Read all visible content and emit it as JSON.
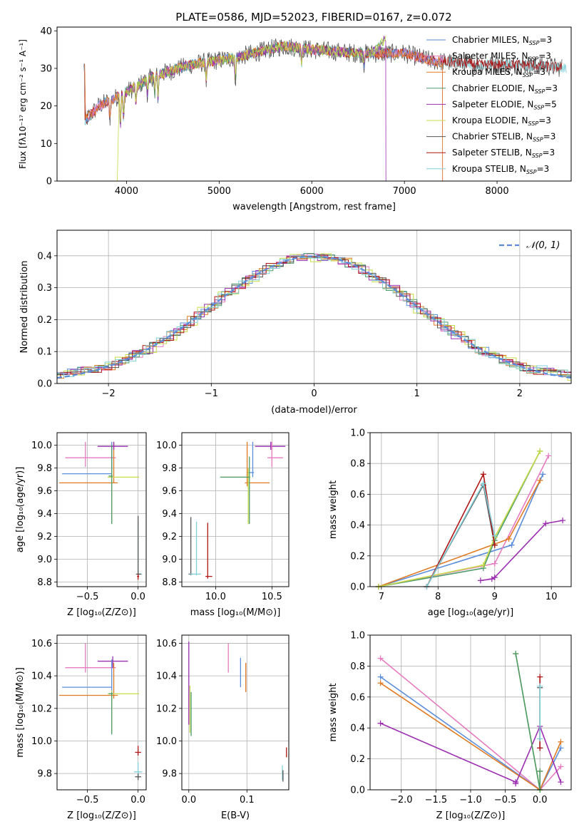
{
  "colors": {
    "chabrier_miles": "#5B8DDB",
    "salpeter_miles": "#E67BC0",
    "kroupa_miles": "#E07A22",
    "chabrier_elodie": "#4C9A6A",
    "salpeter_elodie": "#9A2FB0",
    "kroupa_elodie": "#C8DB48",
    "chabrier_stelib": "#555555",
    "salpeter_stelib": "#B01515",
    "kroupa_stelib": "#7FCFD8",
    "gauss": "#5B8DDB"
  },
  "chart_data": [
    {
      "type": "line",
      "title": "PLATE=0586, MJD=52023, FIBERID=0167, z=0.072",
      "xlabel": "wavelength [Angstrom, rest frame]",
      "ylabel": "Flux [fλ10⁻¹⁷ erg cm⁻² s⁻¹ A⁻¹]",
      "xlim": [
        3250,
        8800
      ],
      "ylim": [
        0,
        41
      ],
      "xticks": [
        "4000",
        "5000",
        "6000",
        "7000",
        "8000"
      ],
      "yticks": [
        "0",
        "10",
        "20",
        "30",
        "40"
      ],
      "continuum": [
        [
          3550,
          16
        ],
        [
          3700,
          20
        ],
        [
          3950,
          23
        ],
        [
          4300,
          28
        ],
        [
          4700,
          31
        ],
        [
          5200,
          33
        ],
        [
          5700,
          36
        ],
        [
          6000,
          35
        ],
        [
          6500,
          34
        ],
        [
          7000,
          34
        ],
        [
          7300,
          32
        ],
        [
          7800,
          31
        ],
        [
          8300,
          31
        ],
        [
          8800,
          30
        ]
      ],
      "legend": [
        {
          "name": "Chabrier MILES, N",
          "sub": "SSP",
          "tail": "=3",
          "color": "chabrier_miles"
        },
        {
          "name": "Salpeter MILES, N",
          "sub": "SSP",
          "tail": "=3",
          "color": "salpeter_miles"
        },
        {
          "name": "Kroupa MILES, N",
          "sub": "SSP",
          "tail": "=3",
          "color": "kroupa_miles"
        },
        {
          "name": "Chabrier ELODIE, N",
          "sub": "SSP",
          "tail": "=3",
          "color": "chabrier_elodie"
        },
        {
          "name": "Salpeter ELODIE, N",
          "sub": "SSP",
          "tail": "=5",
          "color": "salpeter_elodie"
        },
        {
          "name": "Kroupa ELODIE, N",
          "sub": "SSP",
          "tail": "=3",
          "color": "kroupa_elodie"
        },
        {
          "name": "Chabrier STELIB, N",
          "sub": "SSP",
          "tail": "=3",
          "color": "chabrier_stelib"
        },
        {
          "name": "Salpeter STELIB, N",
          "sub": "SSP",
          "tail": "=3",
          "color": "salpeter_stelib"
        },
        {
          "name": "Kroupa STELIB, N",
          "sub": "SSP",
          "tail": "=3",
          "color": "kroupa_stelib"
        }
      ]
    },
    {
      "type": "histogram",
      "xlabel": "(data-model)/error",
      "ylabel": "Normed distribution",
      "xlim": [
        -2.5,
        2.5
      ],
      "ylim": [
        0,
        0.48
      ],
      "xticks": [
        "−2",
        "−1",
        "0",
        "1",
        "2"
      ],
      "yticks": [
        "0.0",
        "0.1",
        "0.2",
        "0.3",
        "0.4"
      ],
      "legend_label": "𝒩(0, 1)",
      "bin_width": 0.1,
      "series": [
        {
          "color": "chabrier_miles",
          "jitter": 0.011
        },
        {
          "color": "salpeter_miles",
          "jitter": 0.012
        },
        {
          "color": "kroupa_miles",
          "jitter": 0.013
        },
        {
          "color": "chabrier_elodie",
          "jitter": 0.011
        },
        {
          "color": "salpeter_elodie",
          "jitter": 0.014
        },
        {
          "color": "kroupa_elodie",
          "jitter": 0.018
        },
        {
          "color": "chabrier_stelib",
          "jitter": 0.01
        },
        {
          "color": "salpeter_stelib",
          "jitter": 0.012
        },
        {
          "color": "kroupa_stelib",
          "jitter": 0.012
        }
      ]
    },
    {
      "type": "errorbar",
      "xlabel": "Z [log₁₀(Z/Z⊙)]",
      "ylabel": "age  [log₁₀(age/yr)]",
      "xlim": [
        -0.8,
        0.08
      ],
      "ylim": [
        8.76,
        10.11
      ],
      "xticks": [
        -0.5,
        0.0
      ],
      "xtick_labels": [
        "−0.5",
        "0.0"
      ],
      "yticks": [
        8.8,
        9.0,
        9.2,
        9.4,
        9.6,
        9.8,
        10.0
      ],
      "ytick_labels": [
        "8.8",
        "9.0",
        "9.2",
        "9.4",
        "9.6",
        "9.8",
        "10.0"
      ],
      "points": [
        {
          "c": "salpeter_miles",
          "x": -0.52,
          "xl": -0.72,
          "xh": -0.22,
          "y": 9.89,
          "yl": 9.81,
          "yh": 10.03
        },
        {
          "c": "chabrier_miles",
          "x": -0.26,
          "xl": -0.75,
          "xh": -0.26,
          "y": 9.75,
          "yl": 9.72,
          "yh": 10.03
        },
        {
          "c": "kroupa_miles",
          "x": -0.24,
          "xl": -0.78,
          "xh": -0.2,
          "y": 9.67,
          "yl": 9.67,
          "yh": 10.03
        },
        {
          "c": "salpeter_elodie",
          "x": -0.24,
          "xl": -0.4,
          "xh": -0.1,
          "y": 9.99,
          "yl": 9.96,
          "yh": 10.03
        },
        {
          "c": "kroupa_elodie",
          "x": -0.26,
          "xl": -0.3,
          "xh": 0.01,
          "y": 9.72,
          "yl": 9.31,
          "yh": 9.78
        },
        {
          "c": "chabrier_elodie",
          "x": -0.26,
          "xl": -0.29,
          "xh": -0.25,
          "y": 9.73,
          "yl": 9.31,
          "yh": 10.0
        },
        {
          "c": "kroupa_stelib",
          "x": 0.0,
          "xl": -0.01,
          "xh": 0.04,
          "y": 8.87,
          "yl": 8.85,
          "yh": 9.33
        },
        {
          "c": "chabrier_stelib",
          "x": 0.0,
          "xl": -0.02,
          "xh": 0.03,
          "y": 8.87,
          "yl": 8.85,
          "yh": 9.38
        },
        {
          "c": "salpeter_stelib",
          "x": 0.0,
          "xl": -0.01,
          "xh": 0.01,
          "y": 8.85,
          "yl": 8.82,
          "yh": 8.87
        }
      ]
    },
    {
      "type": "errorbar",
      "xlabel": "mass [log₁₀(M/M⊙)]",
      "ylabel": "",
      "xlim": [
        9.7,
        10.65
      ],
      "ylim": [
        8.76,
        10.11
      ],
      "xticks": [
        10.0,
        10.5
      ],
      "xtick_labels": [
        "10.0",
        "10.5"
      ],
      "yticks": [
        8.8,
        9.0,
        9.2,
        9.4,
        9.6,
        9.8,
        10.0
      ],
      "ytick_labels": [
        "8.8",
        "9.0",
        "9.2",
        "9.4",
        "9.6",
        "9.8",
        "10.0"
      ],
      "points": [
        {
          "c": "salpeter_elodie",
          "x": 10.49,
          "xl": 10.35,
          "xh": 10.62,
          "y": 9.99,
          "yl": 9.96,
          "yh": 10.03
        },
        {
          "c": "salpeter_miles",
          "x": 10.5,
          "xl": 10.46,
          "xh": 10.6,
          "y": 9.89,
          "yl": 9.81,
          "yh": 10.03
        },
        {
          "c": "chabrier_miles",
          "x": 10.33,
          "xl": 10.28,
          "xh": 10.34,
          "y": 9.76,
          "yl": 9.72,
          "yh": 10.03
        },
        {
          "c": "kroupa_miles",
          "x": 10.28,
          "xl": 10.26,
          "xh": 10.48,
          "y": 9.67,
          "yl": 9.64,
          "yh": 10.03
        },
        {
          "c": "kroupa_elodie",
          "x": 10.29,
          "xl": 10.05,
          "xh": 10.31,
          "y": 9.72,
          "yl": 9.31,
          "yh": 9.8
        },
        {
          "c": "chabrier_elodie",
          "x": 10.3,
          "xl": 10.04,
          "xh": 10.3,
          "y": 9.72,
          "yl": 9.31,
          "yh": 9.9
        },
        {
          "c": "chabrier_stelib",
          "x": 9.78,
          "xl": 9.76,
          "xh": 9.8,
          "y": 8.87,
          "yl": 8.86,
          "yh": 9.37
        },
        {
          "c": "kroupa_stelib",
          "x": 9.83,
          "xl": 9.77,
          "xh": 9.87,
          "y": 8.87,
          "yl": 8.86,
          "yh": 9.33
        },
        {
          "c": "salpeter_stelib",
          "x": 9.93,
          "xl": 9.91,
          "xh": 9.97,
          "y": 8.85,
          "yl": 8.83,
          "yh": 9.32
        }
      ]
    },
    {
      "type": "line",
      "xlabel": "age  [log₁₀(age/yr)]",
      "ylabel": "mass weight",
      "xlim": [
        6.8,
        10.35
      ],
      "ylim": [
        0,
        1.0
      ],
      "xticks": [
        7,
        8,
        9,
        10
      ],
      "xtick_labels": [
        "7",
        "8",
        "9",
        "10"
      ],
      "yticks": [
        0.0,
        0.2,
        0.4,
        0.6,
        0.8,
        1.0
      ],
      "ytick_labels": [
        "0.0",
        "0.2",
        "0.4",
        "0.6",
        "0.8",
        "1.0"
      ],
      "series": [
        {
          "c": "chabrier_miles",
          "pts": [
            [
              6.95,
              0.0
            ],
            [
              9.3,
              0.27
            ],
            [
              9.85,
              0.73
            ]
          ]
        },
        {
          "c": "salpeter_miles",
          "pts": [
            [
              6.95,
              0.0
            ],
            [
              9.0,
              0.15
            ],
            [
              9.95,
              0.85
            ]
          ]
        },
        {
          "c": "kroupa_miles",
          "pts": [
            [
              6.95,
              0.0
            ],
            [
              9.25,
              0.31
            ],
            [
              9.8,
              0.69
            ]
          ]
        },
        {
          "c": "chabrier_elodie",
          "pts": [
            [
              6.95,
              0.0
            ],
            [
              8.8,
              0.12
            ],
            [
              9.0,
              0.3
            ],
            [
              9.8,
              0.88
            ]
          ]
        },
        {
          "c": "salpeter_elodie",
          "pts": [
            [
              8.75,
              0.04
            ],
            [
              8.95,
              0.05
            ],
            [
              9.0,
              0.06
            ],
            [
              9.9,
              0.41
            ],
            [
              10.2,
              0.43
            ]
          ]
        },
        {
          "c": "kroupa_elodie",
          "pts": [
            [
              6.95,
              0.0
            ],
            [
              8.8,
              0.14
            ],
            [
              9.0,
              0.32
            ],
            [
              9.8,
              0.88
            ]
          ]
        },
        {
          "c": "chabrier_stelib",
          "pts": [
            [
              7.8,
              0.0
            ],
            [
              8.8,
              0.66
            ],
            [
              9.0,
              0.27
            ]
          ]
        },
        {
          "c": "salpeter_stelib",
          "pts": [
            [
              7.8,
              0.0
            ],
            [
              8.8,
              0.73
            ],
            [
              9.0,
              0.27
            ]
          ]
        },
        {
          "c": "kroupa_stelib",
          "pts": [
            [
              7.8,
              0.0
            ],
            [
              8.8,
              0.67
            ],
            [
              9.0,
              0.33
            ]
          ]
        }
      ]
    },
    {
      "type": "errorbar",
      "xlabel": "Z [log₁₀(Z/Z⊙)]",
      "ylabel": "mass [log₁₀(M/M⊙)]",
      "xlim": [
        -0.8,
        0.08
      ],
      "ylim": [
        9.7,
        10.65
      ],
      "xticks": [
        -0.5,
        0.0
      ],
      "xtick_labels": [
        "−0.5",
        "0.0"
      ],
      "yticks": [
        9.8,
        10.0,
        10.2,
        10.4,
        10.6
      ],
      "ytick_labels": [
        "9.8",
        "10.0",
        "10.2",
        "10.4",
        "10.6"
      ],
      "points": [
        {
          "c": "salpeter_miles",
          "x": -0.52,
          "xl": -0.72,
          "xh": -0.22,
          "y": 10.45,
          "yl": 10.42,
          "yh": 10.6
        },
        {
          "c": "salpeter_elodie",
          "x": -0.25,
          "xl": -0.4,
          "xh": -0.1,
          "y": 10.49,
          "yl": 10.45,
          "yh": 10.52
        },
        {
          "c": "chabrier_miles",
          "x": -0.26,
          "xl": -0.75,
          "xh": -0.26,
          "y": 10.33,
          "yl": 10.28,
          "yh": 10.5
        },
        {
          "c": "kroupa_miles",
          "x": -0.24,
          "xl": -0.78,
          "xh": -0.2,
          "y": 10.28,
          "yl": 10.26,
          "yh": 10.48
        },
        {
          "c": "kroupa_elodie",
          "x": -0.26,
          "xl": -0.3,
          "xh": 0.01,
          "y": 10.29,
          "yl": 10.05,
          "yh": 10.31
        },
        {
          "c": "chabrier_elodie",
          "x": -0.26,
          "xl": -0.29,
          "xh": -0.25,
          "y": 10.29,
          "yl": 10.04,
          "yh": 10.3
        },
        {
          "c": "salpeter_stelib",
          "x": 0.0,
          "xl": -0.03,
          "xh": 0.03,
          "y": 9.93,
          "yl": 9.91,
          "yh": 9.97
        },
        {
          "c": "kroupa_stelib",
          "x": 0.0,
          "xl": -0.04,
          "xh": 0.04,
          "y": 9.81,
          "yl": 9.77,
          "yh": 9.87
        },
        {
          "c": "chabrier_stelib",
          "x": 0.0,
          "xl": -0.03,
          "xh": 0.03,
          "y": 9.78,
          "yl": 9.76,
          "yh": 9.8
        }
      ]
    },
    {
      "type": "errorbar",
      "xlabel": "E(B-V)",
      "ylabel": "",
      "xlim": [
        -0.012,
        0.172
      ],
      "ylim": [
        9.7,
        10.65
      ],
      "xticks": [
        0.0,
        0.1
      ],
      "xtick_labels": [
        "0.0",
        "0.1"
      ],
      "yticks": [
        9.8,
        10.0,
        10.2,
        10.4,
        10.6
      ],
      "ytick_labels": [
        "9.8",
        "10.0",
        "10.2",
        "10.4",
        "10.6"
      ],
      "points": [
        {
          "c": "salpeter_elodie",
          "x": 0.0,
          "xl": 0.0,
          "xh": 0.0,
          "y": 10.35,
          "yl": 10.1,
          "yh": 10.61
        },
        {
          "c": "kroupa_elodie",
          "x": 0.002,
          "xl": 0.002,
          "xh": 0.002,
          "y": 10.2,
          "yl": 10.05,
          "yh": 10.34
        },
        {
          "c": "chabrier_elodie",
          "x": 0.004,
          "xl": 0.004,
          "xh": 0.004,
          "y": 10.17,
          "yl": 10.03,
          "yh": 10.3
        },
        {
          "c": "salpeter_miles",
          "x": 0.068,
          "xl": 0.068,
          "xh": 0.068,
          "y": 10.5,
          "yl": 10.42,
          "yh": 10.6
        },
        {
          "c": "chabrier_miles",
          "x": 0.089,
          "xl": 0.089,
          "xh": 0.089,
          "y": 10.42,
          "yl": 10.33,
          "yh": 10.51
        },
        {
          "c": "kroupa_miles",
          "x": 0.098,
          "xl": 0.098,
          "xh": 0.098,
          "y": 10.38,
          "yl": 10.3,
          "yh": 10.48
        },
        {
          "c": "kroupa_stelib",
          "x": 0.161,
          "xl": 0.161,
          "xh": 0.161,
          "y": 9.81,
          "yl": 9.76,
          "yh": 9.85
        },
        {
          "c": "chabrier_stelib",
          "x": 0.162,
          "xl": 0.162,
          "xh": 0.162,
          "y": 9.78,
          "yl": 9.75,
          "yh": 9.82
        },
        {
          "c": "salpeter_stelib",
          "x": 0.168,
          "xl": 0.168,
          "xh": 0.168,
          "y": 9.93,
          "yl": 9.9,
          "yh": 9.96
        }
      ]
    },
    {
      "type": "line",
      "xlabel": "Z [log₁₀(Z/Z⊙)]",
      "ylabel": "mass weight",
      "xlim": [
        -2.45,
        0.45
      ],
      "ylim": [
        0,
        1.0
      ],
      "xticks": [
        -2.0,
        -1.5,
        -1.0,
        -0.5,
        0.0
      ],
      "xtick_labels": [
        "−2.0",
        "−1.5",
        "−1.0",
        "−0.5",
        "0.0"
      ],
      "yticks": [
        0.0,
        0.2,
        0.4,
        0.6,
        0.8,
        1.0
      ],
      "ytick_labels": [
        "0.0",
        "0.2",
        "0.4",
        "0.6",
        "0.8",
        "1.0"
      ],
      "series": [
        {
          "c": "salpeter_miles",
          "pts": [
            [
              -2.3,
              0.85
            ],
            [
              0.0,
              0.0
            ],
            [
              0.3,
              0.15
            ]
          ]
        },
        {
          "c": "chabrier_miles",
          "pts": [
            [
              -2.3,
              0.73
            ],
            [
              0.0,
              0.0
            ],
            [
              0.3,
              0.27
            ]
          ]
        },
        {
          "c": "kroupa_miles",
          "pts": [
            [
              -2.3,
              0.69
            ],
            [
              0.0,
              0.0
            ],
            [
              0.3,
              0.31
            ]
          ]
        },
        {
          "c": "salpeter_elodie",
          "pts": [
            [
              -2.3,
              0.43
            ],
            [
              -0.35,
              0.05
            ],
            [
              -0.35,
              0.04
            ],
            [
              0.0,
              0.41
            ],
            [
              0.3,
              0.05
            ]
          ]
        },
        {
          "c": "kroupa_elodie",
          "pts": [
            [
              -0.35,
              0.88
            ],
            [
              0.0,
              0.0
            ],
            [
              0.0,
              0.12
            ]
          ]
        },
        {
          "c": "chabrier_elodie",
          "pts": [
            [
              -0.35,
              0.88
            ],
            [
              0.0,
              0.0
            ],
            [
              0.0,
              0.12
            ]
          ]
        },
        {
          "c": "chabrier_stelib",
          "pts": [
            [
              0.0,
              0.66
            ],
            [
              0.0,
              0.27
            ]
          ]
        },
        {
          "c": "salpeter_stelib",
          "pts": [
            [
              0.0,
              0.73
            ],
            [
              0.0,
              0.27
            ]
          ]
        },
        {
          "c": "kroupa_stelib",
          "pts": [
            [
              0.0,
              0.67
            ],
            [
              0.0,
              0.33
            ]
          ]
        }
      ]
    }
  ]
}
